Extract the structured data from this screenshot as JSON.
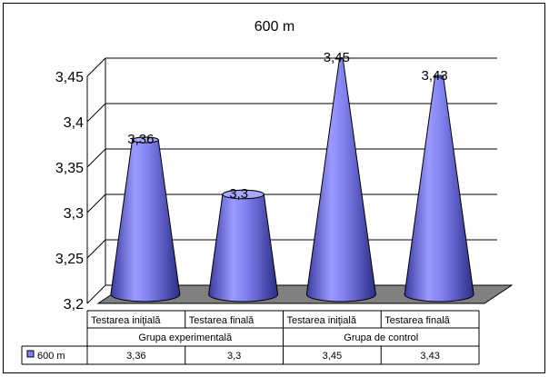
{
  "chart_data": {
    "type": "bar",
    "bar_shape": "cone",
    "title": "600 m",
    "xlabel": "",
    "ylabel": "",
    "ylim": [
      3.2,
      3.45
    ],
    "yticks": [
      3.2,
      3.25,
      3.3,
      3.35,
      3.4,
      3.45
    ],
    "ytick_labels": [
      "3,2",
      "3,25",
      "3,3",
      "3,35",
      "3,4",
      "3,45"
    ],
    "grid": true,
    "legend": "data-table",
    "groups": [
      {
        "label": "Grupa experimentală",
        "categories": [
          "Testarea iniţială",
          "Testarea finală"
        ]
      },
      {
        "label": "Grupa de control",
        "categories": [
          "Testarea iniţială",
          "Testarea finală"
        ]
      }
    ],
    "series": [
      {
        "name": "600 m",
        "values": [
          3.36,
          3.3,
          3.45,
          3.43
        ],
        "value_labels": [
          "3,36",
          "3,3",
          "3,45",
          "3,43"
        ],
        "color": "#8080ff"
      }
    ]
  }
}
